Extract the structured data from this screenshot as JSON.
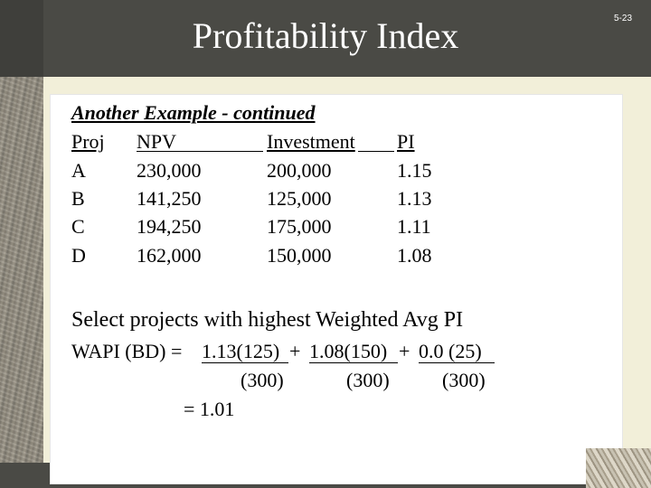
{
  "slide": {
    "title": "Profitability Index",
    "number": "5-23"
  },
  "subtitle": "Another Example - continued",
  "table": {
    "headers": [
      "Proj",
      "NPV",
      "Investment",
      "PI"
    ],
    "rows": [
      [
        "A",
        "230,000",
        "200,000",
        "1.15"
      ],
      [
        "B",
        "141,250",
        "125,000",
        "1.13"
      ],
      [
        "C",
        "194,250",
        "175,000",
        "1.11"
      ],
      [
        "D",
        "162,000",
        "150,000",
        "1.08"
      ]
    ]
  },
  "select_text": "Select projects with highest Weighted Avg PI",
  "wapi": {
    "label": "WAPI (BD) =",
    "term1": "1.13(125)",
    "plus1": "+",
    "term2": "1.08(150)",
    "plus2": "+",
    "term3": "0.0 (25)",
    "den1": "(300)",
    "den2": "(300)",
    "den3": "(300)",
    "result": "= 1.01"
  },
  "colors": {
    "header_bg": "#4a4a45",
    "page_bg": "#f2efd9",
    "title_text": "#ffffff"
  }
}
